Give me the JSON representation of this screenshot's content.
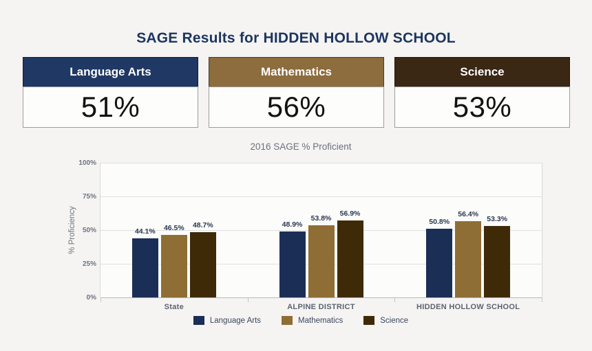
{
  "page_title": "SAGE Results for HIDDEN HOLLOW SCHOOL",
  "cards": [
    {
      "label": "Language Arts",
      "value": "51%",
      "color": "#1f3864"
    },
    {
      "label": "Mathematics",
      "value": "56%",
      "color": "#8d6c3d"
    },
    {
      "label": "Science",
      "value": "53%",
      "color": "#3a2714"
    }
  ],
  "chart_data": {
    "type": "bar",
    "title": "2016 SAGE % Proficient",
    "xlabel": "",
    "ylabel": "% Proficiency",
    "ylim": [
      0,
      100
    ],
    "yticks": [
      "0%",
      "25%",
      "50%",
      "75%",
      "100%"
    ],
    "grid": true,
    "legend_position": "bottom",
    "categories": [
      "State",
      "ALPINE DISTRICT",
      "HIDDEN HOLLOW SCHOOL"
    ],
    "series": [
      {
        "name": "Language Arts",
        "color": "#1b2e55",
        "values": [
          44.1,
          48.9,
          50.8
        ],
        "labels": [
          "44.1%",
          "48.9%",
          "50.8%"
        ]
      },
      {
        "name": "Mathematics",
        "color": "#8e6e34",
        "values": [
          46.5,
          53.8,
          56.4
        ],
        "labels": [
          "46.5%",
          "53.8%",
          "56.4%"
        ]
      },
      {
        "name": "Science",
        "color": "#3f2a08",
        "values": [
          48.7,
          56.9,
          53.3
        ],
        "labels": [
          "48.7%",
          "56.9%",
          "53.3%"
        ]
      }
    ]
  }
}
